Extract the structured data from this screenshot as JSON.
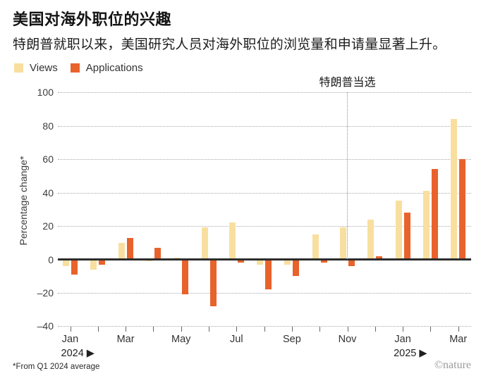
{
  "chart_data": {
    "type": "bar",
    "title": "美国对海外职位的兴趣",
    "subtitle": "特朗普就职以来，美国研究人员对海外职位的浏览量和申请量显著上升。",
    "ylabel": "Percentage change*",
    "ylim": [
      -40,
      100
    ],
    "yticks": [
      100,
      80,
      60,
      40,
      20,
      0,
      -20,
      -40
    ],
    "grid": "horizontal dotted, zero baseline solid",
    "legend_position": "top-left",
    "categories": [
      "Jan 2024",
      "Feb 2024",
      "Mar 2024",
      "Apr 2024",
      "May 2024",
      "Jun 2024",
      "Jul 2024",
      "Aug 2024",
      "Sep 2024",
      "Oct 2024",
      "Nov 2024",
      "Dec 2024",
      "Jan 2025",
      "Feb 2025",
      "Mar 2025"
    ],
    "series": [
      {
        "name": "Views",
        "color": "#F9DF9F",
        "values": [
          -4,
          -6,
          10,
          -1,
          1,
          19,
          22,
          -3,
          -3,
          15,
          19,
          24,
          35,
          41,
          84
        ]
      },
      {
        "name": "Applications",
        "color": "#E8622C",
        "values": [
          -9,
          -3,
          13,
          7,
          -21,
          -28,
          -2,
          -18,
          -10,
          -2,
          -4,
          2,
          28,
          54,
          60
        ]
      }
    ],
    "x_tick_labels": [
      {
        "month_index": 0,
        "label": "Jan",
        "year_label": "2024 ▶"
      },
      {
        "month_index": 2,
        "label": "Mar"
      },
      {
        "month_index": 4,
        "label": "May"
      },
      {
        "month_index": 6,
        "label": "Jul"
      },
      {
        "month_index": 8,
        "label": "Sep"
      },
      {
        "month_index": 10,
        "label": "Nov"
      },
      {
        "month_index": 12,
        "label": "Jan",
        "year_label": "2025 ▶"
      },
      {
        "month_index": 14,
        "label": "Mar"
      }
    ],
    "annotation": {
      "label": "特朗普当选",
      "month_index": 10
    },
    "footnote": "*From Q1 2024 average",
    "credit": "©nature"
  },
  "colors": {
    "background": "#ffffff",
    "zero_line": "#2d2d2d",
    "gridline": "#a9a9a9",
    "event_line": "#8f8f8f"
  }
}
